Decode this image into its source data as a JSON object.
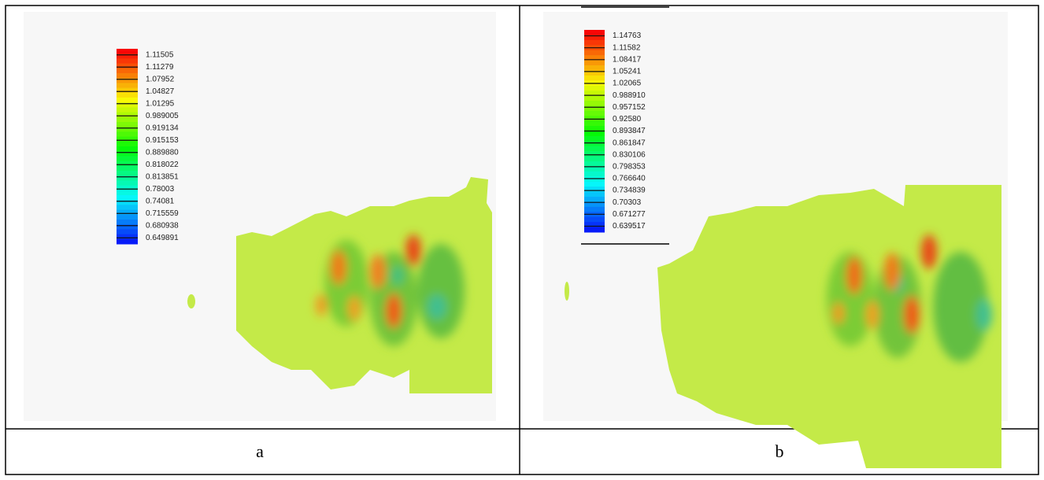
{
  "figure": {
    "panels": [
      {
        "label": "a",
        "colorbar": [
          "1.11505",
          "1.11279",
          "1.07952",
          "1.04827",
          "1.01295",
          "0.989005",
          "0.919134",
          "0.915153",
          "0.889880",
          "0.818022",
          "0.813851",
          "0.78003",
          "0.74081",
          "0.715559",
          "0.680938",
          "0.649891"
        ]
      },
      {
        "label": "b",
        "colorbar": [
          "1.14763",
          "1.11582",
          "1.08417",
          "1.05241",
          "1.02065",
          "0.988910",
          "0.957152",
          "0.92580",
          "0.893847",
          "0.861847",
          "0.830106",
          "0.798353",
          "0.766640",
          "0.734839",
          "0.70303",
          "0.671277",
          "0.639517"
        ]
      }
    ]
  }
}
